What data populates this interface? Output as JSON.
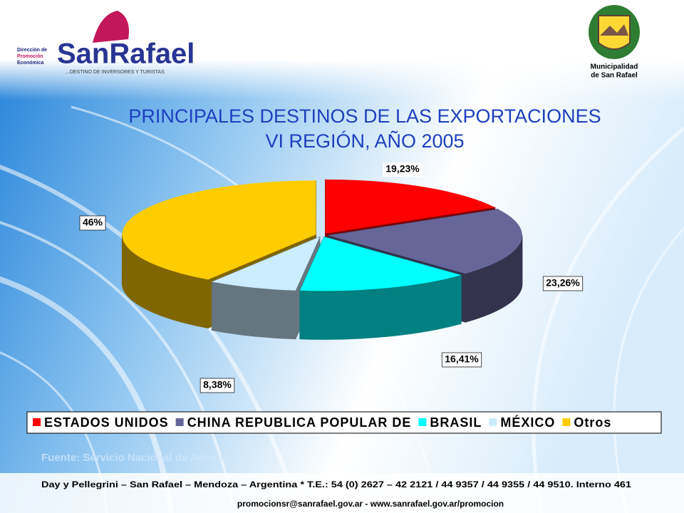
{
  "header": {
    "left_logo": {
      "line1": "Dirección de",
      "line2": "Promoción",
      "line3": "Económica",
      "name": "SanRafael",
      "tagline": "...DESTINO DE INVERSORES Y TURISTAS"
    },
    "right_logo": {
      "line1": "Municipalidad",
      "line2": "de San Rafael"
    }
  },
  "chart_data": {
    "type": "pie",
    "title": [
      "PRINCIPALES  DESTINOS DE LAS EXPORTACIONES",
      "VI REGIÓN, AÑO 2005"
    ],
    "categories": [
      "ESTADOS UNIDOS",
      "CHINA REPUBLICA POPULAR DE",
      "BRASIL",
      "MÉXICO",
      "Otros"
    ],
    "values": [
      19.23,
      23.26,
      16.41,
      8.38,
      46
    ],
    "value_labels": [
      "19,23%",
      "23,26%",
      "16,41%",
      "8,38%",
      "46%"
    ],
    "colors": [
      "#ff0000",
      "#666699",
      "#00ffff",
      "#ccecff",
      "#ffcc00"
    ],
    "legend": "bottom"
  },
  "source": "Fuente: Servicio Nacional de Aduanas",
  "footer": {
    "address": "Day y Pellegrini – San Rafael – Mendoza – Argentina * T.E.: 54 (0) 2627 – 42 2121 / 44 9357 / 44 9355 / 44 9510. Interno 461",
    "contact": "promocionsr@sanrafael.gov.ar - www.sanrafael.gov.ar/promocion"
  }
}
